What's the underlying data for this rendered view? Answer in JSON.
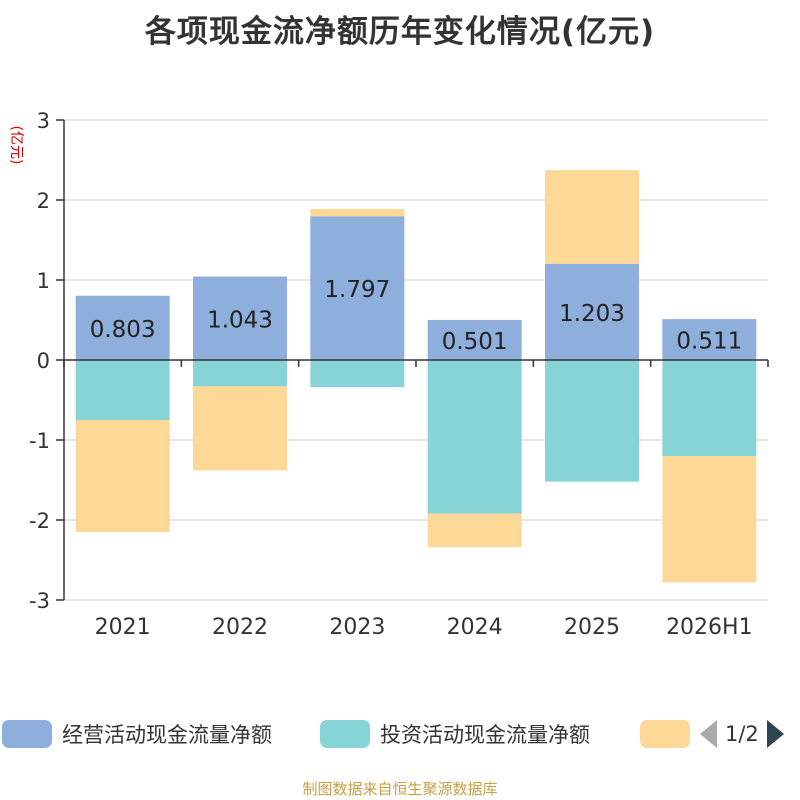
{
  "chart_data": {
    "type": "bar",
    "stacked": true,
    "title": "各项现金流净额历年变化情况(亿元)",
    "ylabel": "(亿元)",
    "xlabel": "",
    "ylim": [
      -3,
      3
    ],
    "yticks": [
      3,
      2,
      1,
      0,
      -1,
      -2,
      -3
    ],
    "grid": true,
    "categories": [
      "2021",
      "2022",
      "2023",
      "2024",
      "2025",
      "2026H1"
    ],
    "series": [
      {
        "name": "经营活动现金流量净额",
        "color": "#8eaedb",
        "values": [
          0.803,
          1.043,
          1.797,
          0.501,
          1.203,
          0.511
        ],
        "labels": [
          "0.803",
          "1.043",
          "1.797",
          "0.501",
          "1.203",
          "0.511"
        ]
      },
      {
        "name": "投资活动现金流量净额",
        "color": "#87d4d6",
        "values": [
          -0.75,
          -0.33,
          -0.34,
          -1.92,
          -1.52,
          -1.2
        ]
      },
      {
        "name": "",
        "color": "#fdd897",
        "values": [
          -1.4,
          -1.05,
          0.09,
          -0.42,
          1.17,
          -1.58
        ]
      }
    ],
    "legend_position": "bottom"
  },
  "legend": {
    "pager": "1/2"
  },
  "source": "制图数据来自恒生聚源数据库"
}
